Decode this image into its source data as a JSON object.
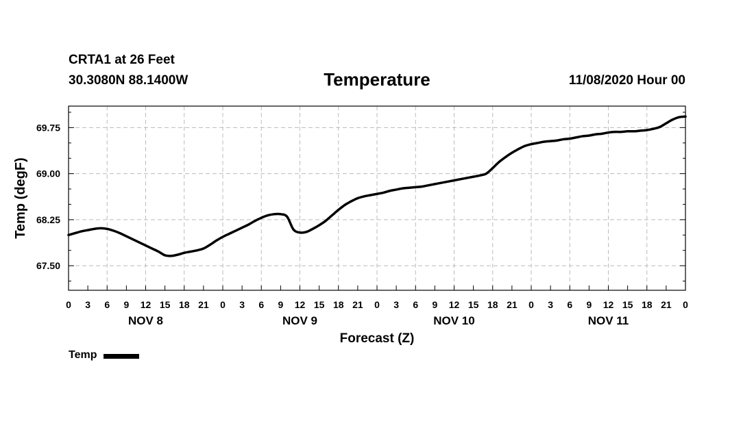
{
  "header": {
    "station": "CRTA1 at 26 Feet",
    "latlon": "30.3080N 88.1400W",
    "title": "Temperature",
    "issued": "11/08/2020 Hour 00"
  },
  "colors": {
    "line": "#000000",
    "grid": "#bbbbbb",
    "background": "#ffffff"
  },
  "chart_data": {
    "type": "line",
    "title": "Temperature",
    "xlabel": "Forecast (Z)",
    "ylabel": "Temp (degF)",
    "xlim": [
      0,
      96
    ],
    "ylim": [
      67.1,
      70.1
    ],
    "yticks": [
      67.5,
      68.25,
      69.0,
      69.75
    ],
    "ytick_labels": [
      "67.50",
      "68.25",
      "69.00",
      "69.75"
    ],
    "xtick_labels": [
      "0",
      "3",
      "6",
      "9",
      "12",
      "15",
      "18",
      "21",
      "0",
      "3",
      "6",
      "9",
      "12",
      "15",
      "18",
      "21",
      "0",
      "3",
      "6",
      "9",
      "12",
      "15",
      "18",
      "21",
      "0",
      "3",
      "6",
      "9",
      "12",
      "15",
      "18",
      "21",
      "0"
    ],
    "day_labels": [
      {
        "label": "NOV 8",
        "hour": 12
      },
      {
        "label": "NOV 9",
        "hour": 36
      },
      {
        "label": "NOV 10",
        "hour": 60
      },
      {
        "label": "NOV 11",
        "hour": 84
      }
    ],
    "grid": true,
    "series": [
      {
        "name": "Temp",
        "x": [
          0,
          1,
          2,
          3,
          4,
          5,
          6,
          7,
          8,
          9,
          10,
          11,
          12,
          13,
          14,
          15,
          16,
          17,
          18,
          19,
          20,
          21,
          22,
          23,
          24,
          25,
          26,
          27,
          28,
          29,
          30,
          31,
          32,
          33,
          34,
          35,
          36,
          37,
          38,
          39,
          40,
          41,
          42,
          43,
          44,
          45,
          46,
          47,
          48,
          49,
          50,
          51,
          52,
          53,
          54,
          55,
          56,
          57,
          58,
          59,
          60,
          61,
          62,
          63,
          64,
          65,
          66,
          67,
          68,
          69,
          70,
          71,
          72,
          73,
          74,
          75,
          76,
          77,
          78,
          79,
          80,
          81,
          82,
          83,
          84,
          85,
          86,
          87,
          88,
          89,
          90,
          91,
          92,
          93,
          94,
          95,
          96
        ],
        "values": [
          68.0,
          68.03,
          68.06,
          68.08,
          68.1,
          68.11,
          68.1,
          68.07,
          68.03,
          67.98,
          67.93,
          67.88,
          67.83,
          67.78,
          67.73,
          67.67,
          67.66,
          67.68,
          67.71,
          67.73,
          67.75,
          67.78,
          67.84,
          67.91,
          67.97,
          68.02,
          68.07,
          68.12,
          68.17,
          68.23,
          68.28,
          68.32,
          68.34,
          68.34,
          68.3,
          68.09,
          68.04,
          68.05,
          68.1,
          68.16,
          68.23,
          68.32,
          68.41,
          68.49,
          68.55,
          68.6,
          68.63,
          68.65,
          68.67,
          68.69,
          68.72,
          68.74,
          68.76,
          68.77,
          68.78,
          68.79,
          68.81,
          68.83,
          68.85,
          68.87,
          68.89,
          68.91,
          68.93,
          68.95,
          68.97,
          69.0,
          69.09,
          69.19,
          69.27,
          69.34,
          69.4,
          69.45,
          69.48,
          69.5,
          69.52,
          69.53,
          69.54,
          69.56,
          69.57,
          69.59,
          69.61,
          69.62,
          69.64,
          69.65,
          69.67,
          69.68,
          69.68,
          69.69,
          69.69,
          69.7,
          69.71,
          69.73,
          69.76,
          69.82,
          69.88,
          69.92,
          69.93
        ]
      }
    ]
  },
  "legend": {
    "label": "Temp"
  }
}
